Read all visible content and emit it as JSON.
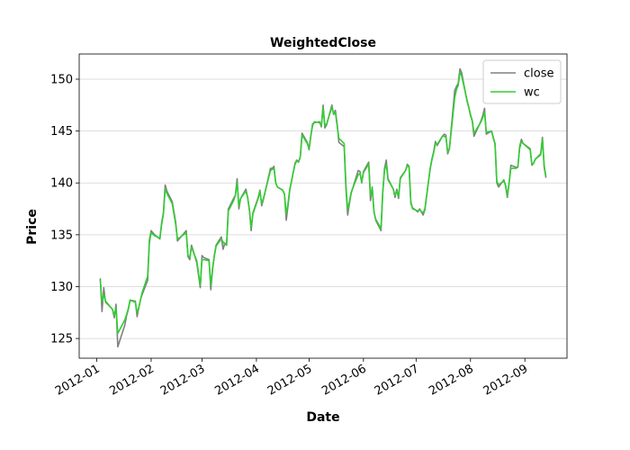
{
  "chart_data": {
    "type": "line",
    "title": "WeightedClose",
    "x_label": "Date",
    "y_label": "Price",
    "x": [
      "2012-01-03",
      "2012-01-04",
      "2012-01-05",
      "2012-01-06",
      "2012-01-09",
      "2012-01-10",
      "2012-01-11",
      "2012-01-12",
      "2012-01-13",
      "2012-01-17",
      "2012-01-18",
      "2012-01-19",
      "2012-01-20",
      "2012-01-23",
      "2012-01-24",
      "2012-01-25",
      "2012-01-26",
      "2012-01-27",
      "2012-01-30",
      "2012-01-31",
      "2012-02-01",
      "2012-02-03",
      "2012-02-06",
      "2012-02-07",
      "2012-02-08",
      "2012-02-09",
      "2012-02-10",
      "2012-02-13",
      "2012-02-15",
      "2012-02-16",
      "2012-02-17",
      "2012-02-21",
      "2012-02-22",
      "2012-02-23",
      "2012-02-24",
      "2012-02-27",
      "2012-02-28",
      "2012-02-29",
      "2012-03-01",
      "2012-03-02",
      "2012-03-05",
      "2012-03-06",
      "2012-03-07",
      "2012-03-08",
      "2012-03-09",
      "2012-03-12",
      "2012-03-13",
      "2012-03-14",
      "2012-03-15",
      "2012-03-16",
      "2012-03-19",
      "2012-03-20",
      "2012-03-21",
      "2012-03-22",
      "2012-03-23",
      "2012-03-26",
      "2012-03-27",
      "2012-03-28",
      "2012-03-29",
      "2012-03-30",
      "2012-04-02",
      "2012-04-03",
      "2012-04-04",
      "2012-04-05",
      "2012-04-09",
      "2012-04-10",
      "2012-04-11",
      "2012-04-12",
      "2012-04-13",
      "2012-04-16",
      "2012-04-17",
      "2012-04-18",
      "2012-04-19",
      "2012-04-20",
      "2012-04-23",
      "2012-04-24",
      "2012-04-25",
      "2012-04-26",
      "2012-04-27",
      "2012-04-30",
      "2012-05-01",
      "2012-05-02",
      "2012-05-03",
      "2012-05-04",
      "2012-05-07",
      "2012-05-08",
      "2012-05-09",
      "2012-05-10",
      "2012-05-11",
      "2012-05-14",
      "2012-05-15",
      "2012-05-16",
      "2012-05-17",
      "2012-05-18",
      "2012-05-21",
      "2012-05-22",
      "2012-05-23",
      "2012-05-24",
      "2012-05-25",
      "2012-05-29",
      "2012-05-30",
      "2012-05-31",
      "2012-06-01",
      "2012-06-04",
      "2012-06-05",
      "2012-06-06",
      "2012-06-07",
      "2012-06-08",
      "2012-06-11",
      "2012-06-12",
      "2012-06-13",
      "2012-06-14",
      "2012-06-15",
      "2012-06-18",
      "2012-06-19",
      "2012-06-20",
      "2012-06-21",
      "2012-06-22",
      "2012-06-25",
      "2012-06-26",
      "2012-06-27",
      "2012-06-28",
      "2012-06-29",
      "2012-07-02",
      "2012-07-03",
      "2012-07-05",
      "2012-07-06",
      "2012-07-09",
      "2012-07-10",
      "2012-07-11",
      "2012-07-12",
      "2012-07-13",
      "2012-07-16",
      "2012-07-17",
      "2012-07-18",
      "2012-07-19",
      "2012-07-20",
      "2012-07-23",
      "2012-07-24",
      "2012-07-25",
      "2012-07-26",
      "2012-07-27",
      "2012-07-30",
      "2012-07-31",
      "2012-08-01",
      "2012-08-02",
      "2012-08-03",
      "2012-08-06",
      "2012-08-07",
      "2012-08-08",
      "2012-08-09",
      "2012-08-10",
      "2012-08-13",
      "2012-08-14",
      "2012-08-15",
      "2012-08-16",
      "2012-08-17",
      "2012-08-20",
      "2012-08-21",
      "2012-08-22",
      "2012-08-23",
      "2012-08-24",
      "2012-08-27",
      "2012-08-28",
      "2012-08-29",
      "2012-08-30",
      "2012-08-31",
      "2012-09-04",
      "2012-09-05",
      "2012-09-06",
      "2012-09-07",
      "2012-09-10",
      "2012-09-11",
      "2012-09-12",
      "2012-09-13"
    ],
    "series": [
      {
        "name": "close",
        "color": "#808080",
        "values": [
          130.8,
          127.6,
          129.9,
          128.5,
          128.0,
          127.8,
          127.0,
          128.3,
          124.2,
          126.3,
          127.2,
          127.8,
          128.7,
          128.6,
          127.1,
          128.0,
          128.8,
          129.3,
          130.6,
          134.5,
          135.4,
          135.0,
          134.6,
          136.2,
          137.1,
          139.8,
          139.2,
          138.2,
          136.2,
          134.4,
          134.6,
          135.4,
          132.9,
          132.6,
          134.0,
          132.3,
          131.1,
          129.9,
          133.0,
          132.8,
          132.6,
          129.7,
          131.6,
          133.0,
          134.0,
          134.8,
          133.6,
          134.2,
          134.0,
          137.5,
          138.5,
          138.8,
          140.4,
          137.5,
          138.5,
          139.4,
          138.6,
          137.4,
          135.4,
          137.1,
          138.6,
          139.3,
          137.8,
          138.4,
          141.4,
          141.4,
          141.6,
          140.0,
          139.6,
          139.3,
          138.9,
          136.4,
          137.8,
          139.3,
          141.9,
          142.2,
          142.0,
          142.5,
          144.8,
          143.9,
          143.2,
          144.5,
          145.7,
          145.8,
          145.9,
          145.4,
          147.5,
          145.3,
          145.6,
          147.5,
          146.6,
          147.0,
          145.7,
          143.9,
          143.5,
          139.5,
          136.9,
          138.0,
          139.0,
          141.2,
          141.1,
          140.0,
          141.1,
          142.0,
          138.3,
          139.6,
          137.2,
          136.4,
          135.4,
          139.0,
          141.4,
          142.2,
          140.4,
          139.4,
          138.6,
          139.4,
          138.5,
          140.5,
          141.2,
          141.8,
          141.6,
          138.0,
          137.6,
          137.2,
          137.5,
          136.9,
          137.4,
          141.4,
          142.3,
          143.0,
          144.0,
          143.6,
          144.5,
          144.7,
          144.6,
          142.8,
          143.3,
          148.9,
          149.3,
          149.6,
          151.0,
          150.6,
          147.9,
          147.3,
          146.5,
          146.0,
          144.5,
          145.6,
          146.0,
          146.5,
          147.2,
          144.7,
          145.0,
          144.3,
          143.8,
          140.0,
          139.6,
          140.3,
          139.7,
          138.6,
          140.0,
          141.7,
          141.5,
          141.5,
          143.5,
          144.2,
          143.8,
          143.3,
          141.7,
          141.9,
          142.3,
          142.8,
          144.4,
          141.5,
          140.5
        ]
      },
      {
        "name": "wc",
        "color": "#32cd32",
        "values": [
          130.7,
          128.5,
          129.3,
          128.6,
          128.0,
          127.8,
          127.2,
          128.0,
          125.5,
          126.8,
          127.3,
          127.9,
          128.7,
          128.5,
          127.5,
          128.0,
          128.8,
          129.5,
          131.0,
          134.2,
          135.2,
          134.9,
          134.7,
          136.0,
          137.0,
          139.4,
          139.0,
          138.0,
          136.0,
          134.6,
          134.7,
          135.2,
          133.0,
          132.8,
          133.8,
          132.5,
          131.3,
          130.1,
          132.6,
          132.6,
          132.5,
          130.1,
          131.8,
          132.9,
          133.9,
          134.6,
          134.3,
          134.1,
          134.0,
          137.3,
          138.3,
          138.8,
          140.0,
          137.8,
          138.5,
          139.2,
          138.6,
          137.4,
          135.7,
          137.0,
          138.5,
          139.2,
          138.0,
          138.5,
          141.2,
          141.3,
          141.4,
          140.0,
          139.6,
          139.3,
          138.9,
          137.0,
          138.0,
          139.4,
          141.8,
          142.1,
          142.1,
          142.5,
          144.6,
          143.8,
          143.3,
          144.6,
          145.5,
          145.9,
          145.8,
          145.5,
          147.3,
          145.5,
          145.7,
          147.3,
          146.7,
          146.8,
          145.5,
          144.3,
          143.8,
          139.8,
          137.4,
          138.2,
          139.1,
          140.8,
          140.9,
          140.1,
          141.0,
          141.8,
          138.8,
          139.5,
          137.2,
          136.5,
          135.6,
          139.2,
          141.2,
          141.8,
          140.3,
          139.4,
          138.8,
          139.2,
          138.7,
          140.4,
          141.2,
          141.7,
          141.5,
          138.2,
          137.5,
          137.3,
          137.4,
          137.1,
          137.5,
          141.3,
          142.2,
          142.9,
          143.8,
          143.7,
          144.5,
          144.5,
          144.4,
          143.0,
          143.3,
          148.2,
          149.0,
          149.4,
          150.7,
          150.3,
          148.0,
          147.3,
          146.6,
          146.0,
          144.8,
          145.6,
          145.9,
          146.3,
          146.8,
          144.9,
          145.0,
          144.4,
          143.7,
          140.2,
          139.8,
          140.2,
          139.8,
          138.8,
          140.0,
          141.4,
          141.4,
          141.6,
          143.3,
          144.0,
          143.8,
          143.2,
          141.8,
          141.9,
          142.3,
          142.7,
          144.2,
          141.7,
          140.6
        ]
      }
    ],
    "xlim": [
      "2011-12-22",
      "2012-09-25"
    ],
    "xticks": [
      {
        "value": "2012-01-01",
        "label": "2012-01"
      },
      {
        "value": "2012-02-01",
        "label": "2012-02"
      },
      {
        "value": "2012-03-01",
        "label": "2012-03"
      },
      {
        "value": "2012-04-01",
        "label": "2012-04"
      },
      {
        "value": "2012-05-01",
        "label": "2012-05"
      },
      {
        "value": "2012-06-01",
        "label": "2012-06"
      },
      {
        "value": "2012-07-01",
        "label": "2012-07"
      },
      {
        "value": "2012-08-01",
        "label": "2012-08"
      },
      {
        "value": "2012-09-01",
        "label": "2012-09"
      }
    ],
    "ylim": [
      123.1,
      152.43
    ],
    "yticks": [
      125,
      130,
      135,
      140,
      145,
      150
    ],
    "grid": "y",
    "legend": "upper right"
  }
}
